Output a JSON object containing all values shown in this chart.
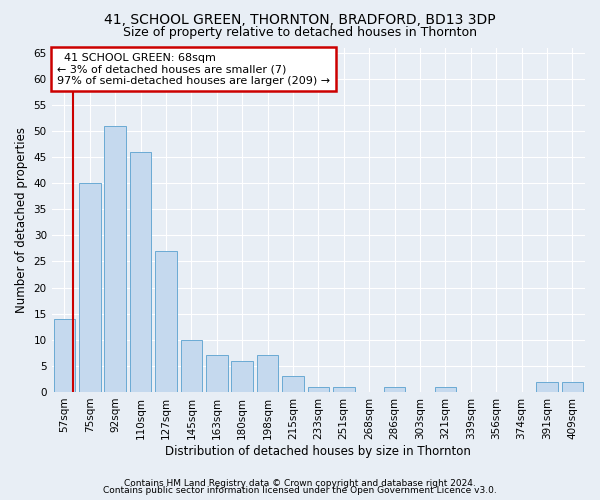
{
  "title": "41, SCHOOL GREEN, THORNTON, BRADFORD, BD13 3DP",
  "subtitle": "Size of property relative to detached houses in Thornton",
  "xlabel": "Distribution of detached houses by size in Thornton",
  "ylabel": "Number of detached properties",
  "footer_line1": "Contains HM Land Registry data © Crown copyright and database right 2024.",
  "footer_line2": "Contains public sector information licensed under the Open Government Licence v3.0.",
  "categories": [
    "57sqm",
    "75sqm",
    "92sqm",
    "110sqm",
    "127sqm",
    "145sqm",
    "163sqm",
    "180sqm",
    "198sqm",
    "215sqm",
    "233sqm",
    "251sqm",
    "268sqm",
    "286sqm",
    "303sqm",
    "321sqm",
    "339sqm",
    "356sqm",
    "374sqm",
    "391sqm",
    "409sqm"
  ],
  "values": [
    14,
    40,
    51,
    46,
    27,
    10,
    7,
    6,
    7,
    3,
    1,
    1,
    0,
    1,
    0,
    1,
    0,
    0,
    0,
    2,
    2
  ],
  "bar_color": "#c5d9ee",
  "bar_edge_color": "#6aaad4",
  "annotation_text": "  41 SCHOOL GREEN: 68sqm  \n← 3% of detached houses are smaller (7)\n97% of semi-detached houses are larger (209) →",
  "annotation_box_color": "#ffffff",
  "annotation_box_edge": "#cc0000",
  "red_line_x": 0.35,
  "ylim": [
    0,
    66
  ],
  "yticks": [
    0,
    5,
    10,
    15,
    20,
    25,
    30,
    35,
    40,
    45,
    50,
    55,
    60,
    65
  ],
  "background_color": "#e8eef5",
  "plot_bg_color": "#e8eef5",
  "grid_color": "#ffffff",
  "title_fontsize": 10,
  "subtitle_fontsize": 9,
  "tick_fontsize": 7.5,
  "ylabel_fontsize": 8.5,
  "xlabel_fontsize": 8.5,
  "footer_fontsize": 6.5
}
